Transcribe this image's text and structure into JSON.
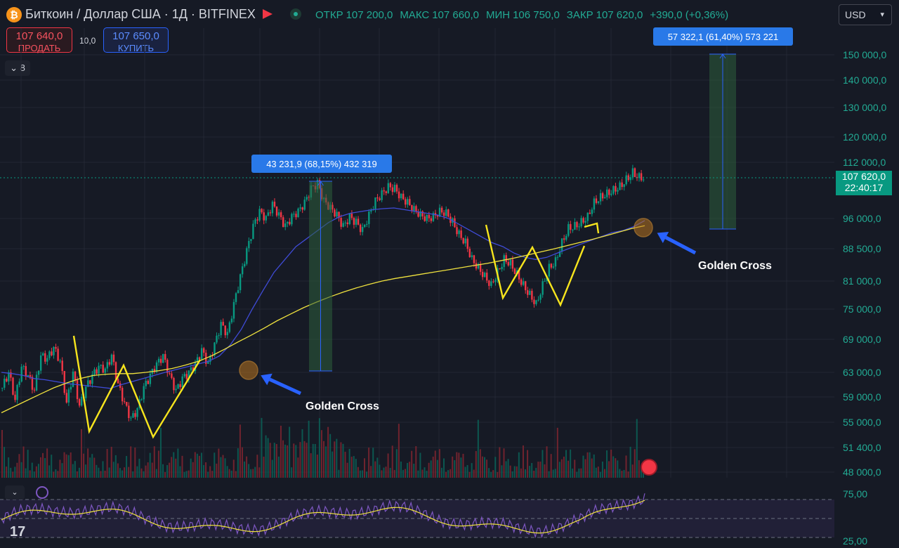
{
  "header": {
    "title": "Биткоин / Доллар США · 1Д · BITFINEX",
    "logo_glyph": "₿",
    "ohlc": [
      {
        "label": "ОТКР",
        "value": "107 200,0"
      },
      {
        "label": "МАКС",
        "value": "107 660,0"
      },
      {
        "label": "МИН",
        "value": "106 750,0"
      },
      {
        "label": "ЗАКР",
        "value": "107 620,0"
      },
      {
        "label": "",
        "value": "+390,0 (+0,36%)"
      }
    ],
    "currency": "USD"
  },
  "trade": {
    "sell_price": "107 640,0",
    "sell_label": "ПРОДАТЬ",
    "spread": "10,0",
    "buy_price": "107 650,0",
    "buy_label": "КУПИТЬ"
  },
  "toolbar": {
    "collapse_count": "8"
  },
  "price_tag": {
    "price": "107 620,0",
    "time": "22:40:17"
  },
  "colors": {
    "up": "#089981",
    "down": "#f23645",
    "ma_fast": "#3f4bd6",
    "ma_slow": "#f0e23e",
    "pattern": "#f7e51d",
    "arrow": "#2962ff",
    "rsi": "#7e57c2"
  },
  "chart_data": {
    "type": "line",
    "series_kind": "candlestick",
    "y_ticks": [
      150000,
      140000,
      130000,
      120000,
      112000,
      96000,
      88500,
      81000,
      75000,
      69000,
      63000,
      59000,
      55000,
      51400,
      48000
    ],
    "y_tick_labels": [
      "150 000,0",
      "140 000,0",
      "130 000,0",
      "120 000,0",
      "112 000,0",
      "96 000,0",
      "88 500,0",
      "81 000,0",
      "75 000,0",
      "69 000,0",
      "63 000,0",
      "59 000,0",
      "55 000,0",
      "51 400,0",
      "48 000,0"
    ],
    "close_path": [
      60500,
      63000,
      58500,
      64000,
      62500,
      60000,
      66000,
      65500,
      67500,
      65000,
      58000,
      63000,
      57500,
      60500,
      62500,
      64000,
      63500,
      66000,
      61000,
      58000,
      55500,
      57000,
      60500,
      62500,
      64500,
      66000,
      62500,
      60000,
      62000,
      63000,
      64500,
      67000,
      64500,
      68000,
      72000,
      70000,
      76000,
      82000,
      88000,
      94000,
      98000,
      96000,
      100000,
      97000,
      94000,
      96500,
      98000,
      100500,
      104500,
      106000,
      101000,
      99000,
      97000,
      94000,
      96500,
      95000,
      93000,
      97000,
      101000,
      103000,
      105000,
      104500,
      102000,
      100500,
      98500,
      97000,
      96000,
      96500,
      98000,
      97500,
      95000,
      92000,
      90000,
      86000,
      84000,
      82000,
      80000,
      83000,
      86000,
      85000,
      82500,
      80000,
      78000,
      76000,
      80000,
      84000,
      85500,
      90000,
      93500,
      94000,
      95000,
      96500,
      100500,
      102000,
      103000,
      104000,
      105000,
      107000,
      109000,
      107620
    ],
    "ma_fast_path": [
      63000,
      62800,
      62500,
      62000,
      61800,
      61500,
      61200,
      61000,
      60800,
      60600,
      60400,
      61000,
      61500,
      62000,
      62500,
      63000,
      63500,
      64000,
      64500,
      65000,
      66000,
      68000,
      71000,
      75000,
      79000,
      83000,
      86000,
      89000,
      91000,
      93000,
      95000,
      96500,
      97500,
      98000,
      98500,
      98800,
      99000,
      98500,
      98000,
      97500,
      97000,
      96000,
      94500,
      93000,
      91500,
      90000,
      89000,
      87500,
      86500,
      86000,
      86500,
      87500,
      88500,
      89500,
      90500,
      91500,
      92500,
      93000,
      94000,
      95500
    ],
    "ma_slow_path": [
      56500,
      57500,
      58500,
      59500,
      60500,
      61300,
      62000,
      62500,
      62700,
      62800,
      62800,
      63000,
      63300,
      63700,
      64300,
      65000,
      66000,
      67200,
      68500,
      69800,
      71200,
      72700,
      74000,
      75300,
      76500,
      77600,
      78600,
      79500,
      80300,
      81000,
      81600,
      82100,
      82600,
      83100,
      83600,
      84100,
      84600,
      85100,
      85700,
      86300,
      87000,
      87700,
      88400,
      89200,
      90000,
      90800,
      91700,
      92600,
      93500,
      94200
    ],
    "annotations": [
      {
        "kind": "measure",
        "text": "43 231,9 (68,15%) 432 319"
      },
      {
        "kind": "measure",
        "text": "57 322,1 (61,40%) 573 221"
      },
      {
        "kind": "label",
        "text": "Golden Cross"
      },
      {
        "kind": "label",
        "text": "Golden Cross"
      }
    ],
    "rsi": {
      "levels": [
        75,
        25
      ],
      "level_labels": [
        "75,00",
        "25,00"
      ]
    },
    "grid": true,
    "ylim": [
      48000,
      150000
    ]
  }
}
